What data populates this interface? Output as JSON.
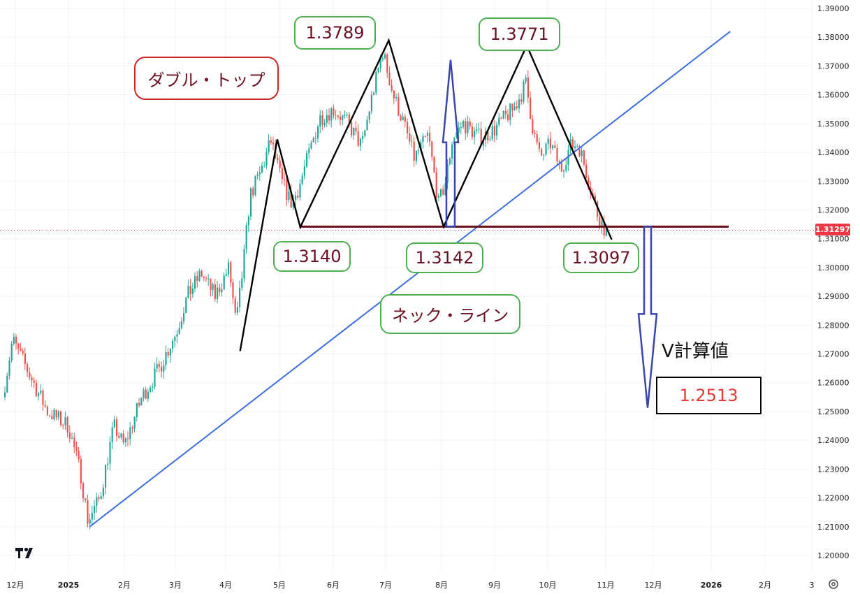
{
  "chart_data": {
    "type": "candlestick",
    "y_ticks": [
      "1.39000",
      "1.38000",
      "1.37000",
      "1.36000",
      "1.35000",
      "1.34000",
      "1.33000",
      "1.32000",
      "1.31000",
      "1.30000",
      "1.29000",
      "1.28000",
      "1.27000",
      "1.26000",
      "1.25000",
      "1.24000",
      "1.23000",
      "1.22000",
      "1.21000",
      "1.20000"
    ],
    "ylim": [
      1.195,
      1.392
    ],
    "x_ticks": [
      "12月",
      "2025",
      "2月",
      "3月",
      "4月",
      "5月",
      "6月",
      "7月",
      "8月",
      "9月",
      "10月",
      "11月",
      "12月",
      "2026",
      "2月",
      "3"
    ],
    "last_price": "1.31297",
    "neckline_value": 1.3142,
    "trendline": {
      "start": [
        "2025-01-13",
        1.21
      ],
      "end": [
        "2026-01-10",
        1.382
      ]
    },
    "pattern_path": [
      [
        "2025-04-08",
        1.271
      ],
      [
        "2025-04-29",
        1.3445
      ],
      [
        "2025-05-12",
        1.314
      ],
      [
        "2025-07-01",
        1.3789
      ],
      [
        "2025-08-01",
        1.3142
      ],
      [
        "2025-09-17",
        1.3771
      ],
      [
        "2025-11-04",
        1.3097
      ]
    ],
    "annotations": {
      "peak1": "1.3789",
      "peak2": "1.3771",
      "trough1": "1.3140",
      "trough2": "1.3142",
      "low_now": "1.3097",
      "pattern_name": "ダブル・トップ",
      "neckline_label": "ネック・ライン",
      "target_label": "V計算値",
      "target_value": "1.2513"
    },
    "target_value_num": 1.2513,
    "colors": {
      "up": "#26a69a",
      "down": "#ef5350",
      "trendline": "#3d6ee0",
      "neckline": "#6b0f1a",
      "pattern": "#000000",
      "arrow": "#3a44b0",
      "price_tag": "#f23645"
    }
  }
}
